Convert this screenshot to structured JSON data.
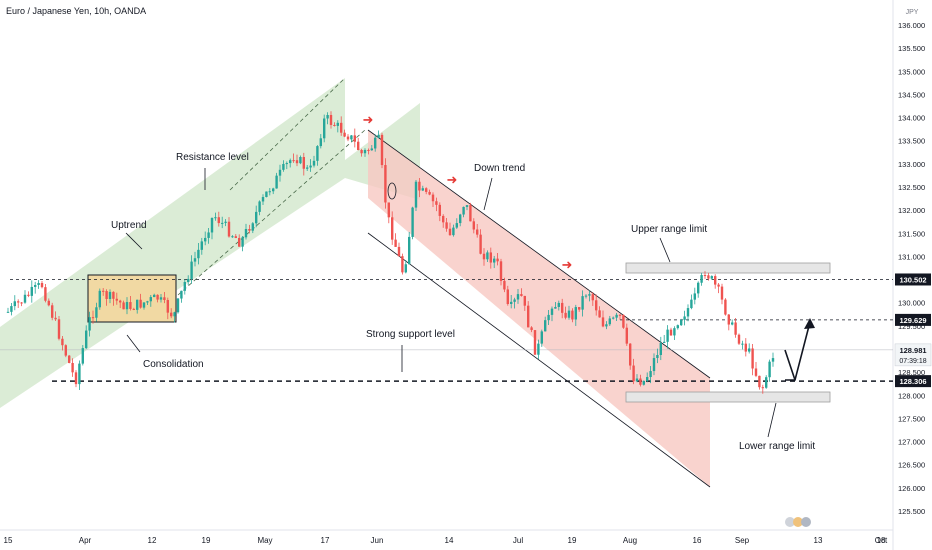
{
  "header": {
    "title": "Euro / Japanese Yen, 10h, OANDA",
    "currency": "JPY"
  },
  "colors": {
    "up_candle": "#26a69a",
    "down_candle": "#ef5350",
    "uptrend_channel_fill": "#cfe6c8",
    "downtrend_channel_fill": "#f8c8c2",
    "consolidation_fill": "#f1d9a3",
    "range_box_fill": "#e6e6e6",
    "last_price_bg": "#f2f5f7",
    "level_badge_bg": "#131722",
    "signal_arrow": "#e53935"
  },
  "chart_data": {
    "type": "candlestick",
    "title": "Euro / Japanese Yen, 10h, OANDA",
    "ylim": [
      125.0,
      136.5
    ],
    "y_ticks": [
      "125.500",
      "126.000",
      "126.500",
      "127.000",
      "127.500",
      "128.000",
      "128.500",
      "129.000",
      "129.500",
      "130.000",
      "130.500",
      "131.000",
      "131.500",
      "132.000",
      "132.500",
      "133.000",
      "133.500",
      "134.000",
      "134.500",
      "135.000",
      "135.500",
      "136.000"
    ],
    "x_ticks": [
      "15",
      "Apr",
      "12",
      "19",
      "May",
      "17",
      "Jun",
      "14",
      "Jul",
      "19",
      "Aug",
      "16",
      "Sep",
      "13",
      "Oct",
      "18"
    ],
    "price_path": [
      [
        "Mar 15",
        129.8
      ],
      [
        "Mar 22",
        130.4
      ],
      [
        "Mar 29",
        128.3
      ],
      [
        "Apr 2",
        129.6
      ],
      [
        "Apr 5",
        130.2
      ],
      [
        "Apr 12",
        129.9
      ],
      [
        "Apr 19",
        130.1
      ],
      [
        "Apr 23",
        129.7
      ],
      [
        "Apr 26",
        130.5
      ],
      [
        "May 3",
        131.9
      ],
      [
        "May 10",
        131.3
      ],
      [
        "May 17",
        132.4
      ],
      [
        "May 24",
        133.2
      ],
      [
        "May 28",
        132.8
      ],
      [
        "Jun 1",
        134.0
      ],
      [
        "Jun 7",
        133.6
      ],
      [
        "Jun 10",
        133.2
      ],
      [
        "Jun 14",
        133.5
      ],
      [
        "Jun 16",
        131.9
      ],
      [
        "Jun 20",
        130.6
      ],
      [
        "Jun 23",
        132.5
      ],
      [
        "Jun 28",
        132.1
      ],
      [
        "Jul 1",
        131.4
      ],
      [
        "Jul 5",
        132.2
      ],
      [
        "Jul 9",
        131.1
      ],
      [
        "Jul 13",
        130.9
      ],
      [
        "Jul 16",
        129.8
      ],
      [
        "Jul 19",
        130.2
      ],
      [
        "Jul 23",
        128.9
      ],
      [
        "Jul 27",
        130.0
      ],
      [
        "Aug 1",
        129.7
      ],
      [
        "Aug 5",
        130.3
      ],
      [
        "Aug 9",
        129.5
      ],
      [
        "Aug 13",
        129.7
      ],
      [
        "Aug 16",
        128.4
      ],
      [
        "Aug 19",
        128.3
      ],
      [
        "Aug 23",
        129.1
      ],
      [
        "Aug 27",
        129.6
      ],
      [
        "Aug 31",
        130.0
      ],
      [
        "Sep 3",
        130.7
      ],
      [
        "Sep 6",
        130.3
      ],
      [
        "Sep 10",
        129.4
      ],
      [
        "Sep 14",
        128.9
      ],
      [
        "Sep 17",
        128.1
      ],
      [
        "Sep 20",
        128.9
      ]
    ],
    "levels": [
      {
        "price": 130.502,
        "label": "130.502",
        "style": "dashed"
      },
      {
        "price": 129.629,
        "label": "129.629",
        "style": "dashed"
      },
      {
        "price": 128.306,
        "label": "128.306",
        "style": "dashed-bold"
      }
    ],
    "last_price": {
      "value": "128.981",
      "countdown": "07:39:18"
    },
    "annotations": {
      "uptrend": "Uptrend",
      "resistance": "Resistance level",
      "consolidation": "Consolidation",
      "downtrend": "Down trend",
      "upper_range": "Upper range limit",
      "support": "Strong support level",
      "lower_range": "Lower range limit"
    }
  }
}
